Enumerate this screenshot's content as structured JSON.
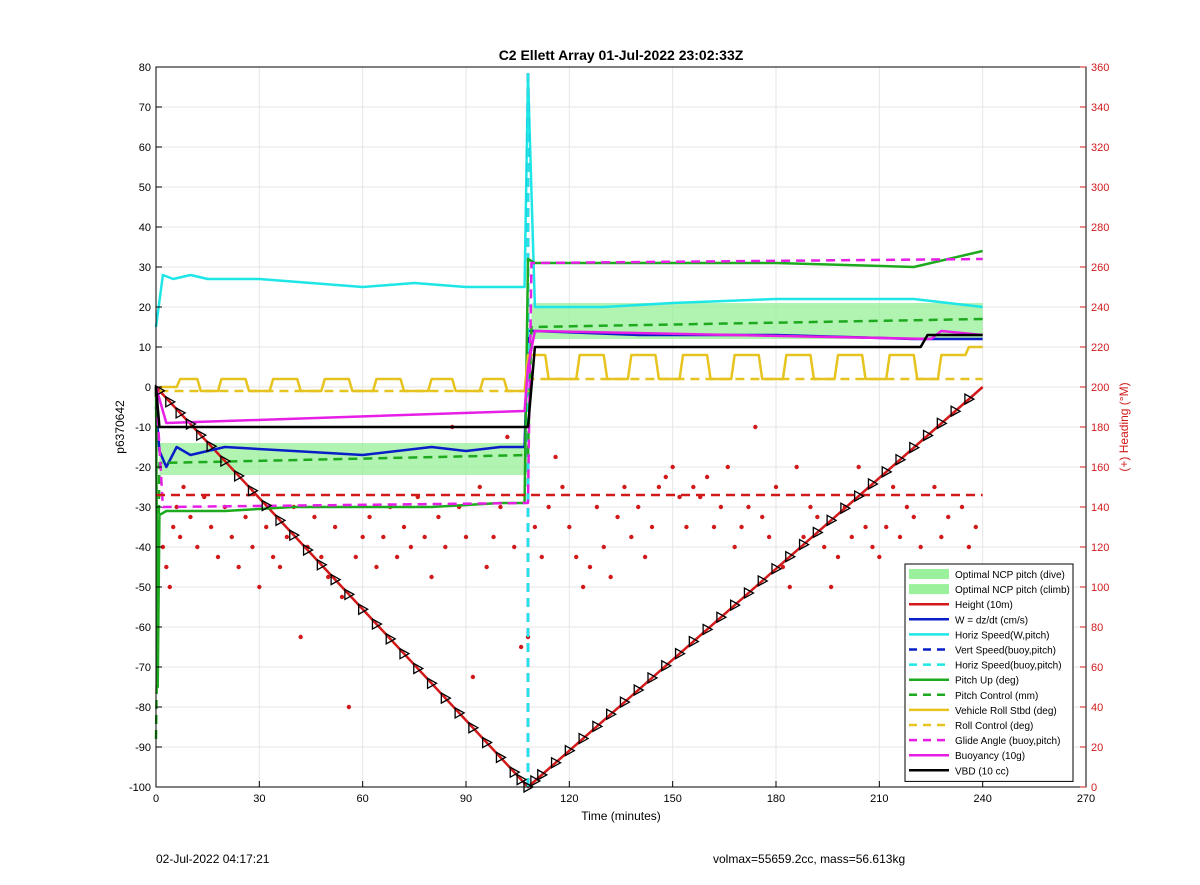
{
  "footer": {
    "left": "02-Jul-2022 04:17:21",
    "right": "volmax=55659.2cc, mass=56.613kg"
  },
  "chart_data": {
    "type": "line",
    "title": "C2 Ellett Array 01-Jul-2022 23:02:33Z",
    "xlabel": "Time (minutes)",
    "ylabel": "p6370642",
    "y2label": "(+) Heading (°M)",
    "xlim": [
      0,
      270
    ],
    "ylim": [
      -100,
      80
    ],
    "y2lim": [
      0,
      360
    ],
    "xticks": [
      0,
      30,
      60,
      90,
      120,
      150,
      180,
      210,
      240,
      270
    ],
    "yticks": [
      -100,
      -90,
      -80,
      -70,
      -60,
      -50,
      -40,
      -30,
      -20,
      -10,
      0,
      10,
      20,
      30,
      40,
      50,
      60,
      70,
      80
    ],
    "y2ticks": [
      0,
      20,
      40,
      60,
      80,
      100,
      120,
      140,
      160,
      180,
      200,
      220,
      240,
      260,
      280,
      300,
      320,
      340,
      360
    ],
    "grid": true,
    "legend_location": "bottom-right",
    "colors": {
      "red": "#d11919",
      "blue": "#0a1ec8",
      "cyan": "#1ee6e6",
      "green": "#1eaa1e",
      "gold": "#e6c31e",
      "magenta": "#e61ee6",
      "black": "#000000",
      "band": "#90ee90",
      "y2axis": "#d11919"
    },
    "series": [
      {
        "name": "Optimal NCP pitch (dive)",
        "style": "band",
        "color": "#90ee90",
        "x": [
          1,
          108
        ],
        "lower": [
          -22,
          -22
        ],
        "upper": [
          -14,
          -14
        ]
      },
      {
        "name": "Optimal NCP pitch (climb)",
        "style": "band",
        "color": "#90ee90",
        "x": [
          109,
          240
        ],
        "lower": [
          12,
          12
        ],
        "upper": [
          21,
          21
        ]
      },
      {
        "name": "Height (10m)",
        "style": "solid",
        "color": "#d11919",
        "x": [
          0,
          108,
          240
        ],
        "y": [
          0,
          -100,
          0
        ]
      },
      {
        "name": "W = dz/dt (cm/s)",
        "style": "solid",
        "color": "#0a1ec8",
        "x": [
          0,
          1,
          3,
          6,
          10,
          20,
          40,
          60,
          80,
          90,
          100,
          107,
          108,
          110,
          140,
          180,
          220,
          225,
          240
        ],
        "y": [
          -5,
          -16,
          -20,
          -15,
          -17,
          -15,
          -16,
          -17,
          -15,
          -16,
          -15,
          -15,
          14,
          14,
          13,
          13,
          12,
          12,
          12
        ]
      },
      {
        "name": "Horiz Speed(W,pitch)",
        "style": "solid",
        "color": "#1ee6e6",
        "x": [
          0,
          2,
          5,
          10,
          15,
          30,
          45,
          60,
          75,
          90,
          100,
          107,
          108,
          110,
          130,
          150,
          180,
          200,
          220,
          230,
          240
        ],
        "y": [
          15,
          28,
          27,
          28,
          27,
          27,
          26,
          25,
          26,
          25,
          25,
          25,
          78,
          20,
          20,
          21,
          22,
          22,
          22,
          21,
          20
        ]
      },
      {
        "name": "Vert Speed(buoy,pitch)",
        "style": "dashed",
        "color": "#0a1ec8",
        "x": [
          108,
          108
        ],
        "y": [
          -100,
          80
        ]
      },
      {
        "name": "Horiz Speed(buoy,pitch)",
        "style": "dashed",
        "color": "#1ee6e6",
        "x": [
          108,
          108
        ],
        "y": [
          -100,
          80
        ]
      },
      {
        "name": "Pitch Up (deg)",
        "style": "solid",
        "color": "#1eaa1e",
        "x": [
          0,
          0.5,
          1,
          3,
          10,
          20,
          40,
          60,
          80,
          100,
          107,
          108,
          110,
          140,
          180,
          220,
          240
        ],
        "y": [
          0,
          -75,
          -32,
          -31,
          -31,
          -31,
          -30,
          -30,
          -30,
          -29,
          -29,
          32,
          31,
          31,
          31,
          30,
          34
        ]
      },
      {
        "name": "Pitch Control (mm)",
        "style": "dashed",
        "color": "#1eaa1e",
        "x": [
          0,
          1,
          108,
          109,
          240
        ],
        "y": [
          -88,
          -19,
          -17,
          15,
          17
        ]
      },
      {
        "name": "Vehicle Roll Stbd (deg)",
        "style": "solid",
        "color": "#e6c31e",
        "x": [
          1,
          6,
          7,
          12,
          13,
          18,
          19,
          26,
          27,
          33,
          34,
          41,
          42,
          48,
          49,
          56,
          57,
          63,
          64,
          71,
          72,
          79,
          80,
          86,
          87,
          94,
          95,
          101,
          102,
          107,
          108,
          113,
          114,
          122,
          123,
          130,
          131,
          137,
          138,
          145,
          146,
          152,
          153,
          160,
          161,
          167,
          168,
          175,
          176,
          182,
          183,
          190,
          191,
          197,
          198,
          205,
          206,
          212,
          213,
          220,
          221,
          227,
          228,
          235,
          236,
          240
        ],
        "y": [
          0,
          0,
          2,
          2,
          -1,
          -1,
          2,
          2,
          -1,
          -1,
          2,
          2,
          -1,
          -1,
          2,
          2,
          -1,
          -1,
          2,
          2,
          -1,
          -1,
          2,
          2,
          -1,
          -1,
          2,
          2,
          -1,
          -1,
          8,
          8,
          2,
          2,
          8,
          8,
          2,
          2,
          8,
          8,
          2,
          2,
          8,
          8,
          2,
          2,
          8,
          8,
          2,
          2,
          8,
          8,
          2,
          2,
          8,
          8,
          2,
          2,
          8,
          8,
          2,
          2,
          8,
          8,
          10,
          10
        ]
      },
      {
        "name": "Roll Control (deg)",
        "style": "dashed",
        "color": "#e6c31e",
        "x": [
          1,
          108,
          109,
          240
        ],
        "y": [
          -1,
          -1,
          2,
          2
        ]
      },
      {
        "name": "Glide Angle (buoy,pitch)",
        "style": "dashed",
        "color": "#e61ee6",
        "x": [
          0,
          2,
          108,
          109,
          240
        ],
        "y": [
          0,
          -30,
          -29,
          31,
          32
        ]
      },
      {
        "name": "Buoyancy (10g)",
        "style": "solid",
        "color": "#e61ee6",
        "x": [
          0,
          3,
          107,
          108,
          110,
          225,
          228,
          240
        ],
        "y": [
          0,
          -9,
          -6,
          5,
          14,
          12,
          14,
          13
        ]
      },
      {
        "name": "VBD (10 cc)",
        "style": "solid",
        "color": "#000000",
        "x": [
          0,
          1,
          107,
          108,
          110,
          222,
          224,
          240
        ],
        "y": [
          0,
          -10,
          -10,
          -10,
          10,
          10,
          13,
          13
        ]
      },
      {
        "name": "",
        "style": "dashed",
        "color": "#d11919",
        "axis": "y2",
        "x": [
          0,
          240
        ],
        "y": [
          146,
          146
        ]
      }
    ],
    "heading_scatter": {
      "axis": "y2",
      "color": "#d11919",
      "x": [
        2,
        3,
        4,
        5,
        6,
        7,
        8,
        10,
        12,
        14,
        16,
        18,
        20,
        22,
        24,
        26,
        28,
        30,
        32,
        34,
        36,
        38,
        40,
        42,
        44,
        46,
        48,
        50,
        52,
        54,
        56,
        58,
        60,
        62,
        64,
        66,
        68,
        70,
        72,
        74,
        76,
        78,
        80,
        82,
        84,
        86,
        88,
        90,
        92,
        94,
        96,
        98,
        100,
        102,
        104,
        106,
        108,
        110,
        112,
        114,
        116,
        118,
        120,
        122,
        124,
        126,
        128,
        130,
        132,
        134,
        136,
        138,
        140,
        142,
        144,
        146,
        148,
        150,
        152,
        154,
        156,
        158,
        160,
        162,
        164,
        166,
        168,
        170,
        172,
        174,
        176,
        178,
        180,
        182,
        184,
        186,
        188,
        190,
        192,
        194,
        196,
        198,
        200,
        202,
        204,
        206,
        208,
        210,
        212,
        214,
        216,
        218,
        220,
        222,
        224,
        226,
        228,
        230,
        232,
        234,
        236,
        238
      ],
      "y": [
        120,
        110,
        100,
        130,
        140,
        125,
        150,
        135,
        120,
        145,
        130,
        115,
        140,
        125,
        110,
        135,
        120,
        100,
        130,
        115,
        110,
        125,
        140,
        75,
        120,
        135,
        115,
        105,
        130,
        95,
        40,
        115,
        125,
        135,
        110,
        125,
        140,
        115,
        130,
        120,
        145,
        125,
        105,
        135,
        120,
        180,
        140,
        125,
        55,
        150,
        110,
        125,
        140,
        175,
        120,
        70,
        75,
        130,
        115,
        140,
        165,
        150,
        130,
        115,
        100,
        110,
        140,
        120,
        105,
        135,
        150,
        125,
        140,
        115,
        130,
        150,
        155,
        160,
        145,
        130,
        150,
        145,
        155,
        130,
        140,
        160,
        120,
        130,
        140,
        180,
        135,
        125,
        150,
        110,
        100,
        160,
        125,
        140,
        135,
        120,
        100,
        115,
        140,
        125,
        160,
        130,
        120,
        115,
        130,
        150,
        125,
        140,
        135,
        120,
        110,
        150,
        125,
        135,
        105,
        140,
        120,
        130
      ]
    },
    "markers": {
      "style": "triangle-right",
      "color": "#000000",
      "x": [
        1,
        4,
        7,
        10,
        13,
        16,
        20,
        24,
        28,
        32,
        36,
        40,
        44,
        48,
        52,
        56,
        60,
        64,
        68,
        72,
        76,
        80,
        84,
        88,
        92,
        96,
        100,
        104,
        106,
        108,
        110,
        112,
        116,
        120,
        124,
        128,
        132,
        136,
        140,
        144,
        148,
        152,
        156,
        160,
        164,
        168,
        172,
        176,
        180,
        184,
        188,
        192,
        196,
        200,
        204,
        208,
        212,
        216,
        220,
        224,
        228,
        232,
        236
      ]
    }
  }
}
